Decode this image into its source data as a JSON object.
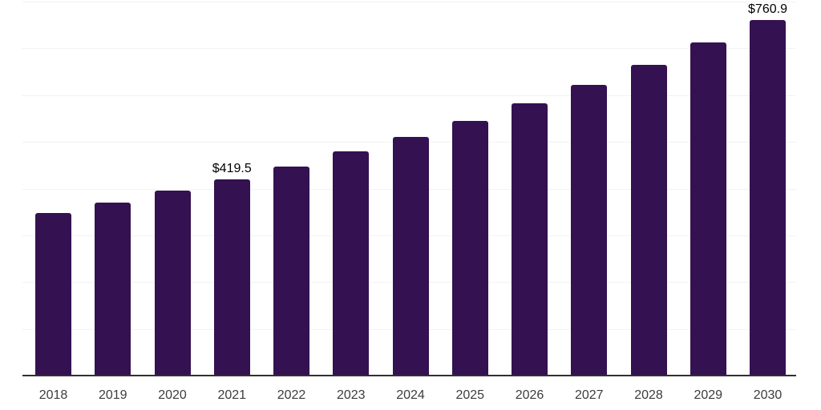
{
  "chart_data": {
    "type": "bar",
    "title": "",
    "xlabel": "",
    "ylabel": "",
    "categories": [
      "2018",
      "2019",
      "2020",
      "2021",
      "2022",
      "2023",
      "2024",
      "2025",
      "2026",
      "2027",
      "2028",
      "2029",
      "2030"
    ],
    "values": [
      348.6,
      369.9,
      395.5,
      419.5,
      446.8,
      479.4,
      510.7,
      544.9,
      583.1,
      622.0,
      664.8,
      713.2,
      760.9
    ],
    "data_labels": {
      "2021": "$419.5",
      "2030": "$760.9"
    },
    "ylim": [
      0,
      800
    ],
    "gridline_interval": 100,
    "grid": true,
    "legend_position": "none",
    "y_axis_tick_labels_visible": false,
    "bar_color": "#341151"
  },
  "style": {
    "background_color": "#ffffff",
    "bar_color": "#341151",
    "gridline_color": "#f2f2f2",
    "axis_line_color": "#303030",
    "data_label_color": "#000000",
    "tick_label_color": "#3c3c3c"
  }
}
